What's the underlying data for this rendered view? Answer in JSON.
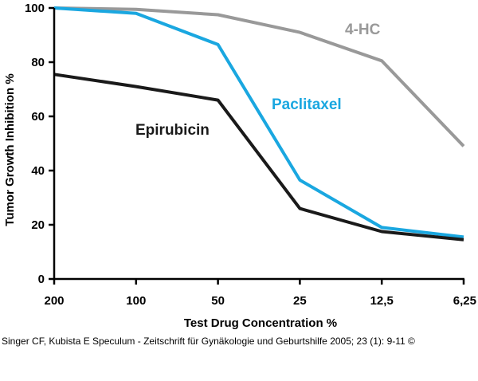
{
  "chart_data": {
    "type": "line",
    "xlabel": "Test Drug Concentration %",
    "ylabel": "Tumor Growth Inhibition %",
    "categories": [
      "200",
      "100",
      "50",
      "25",
      "12,5",
      "6,25"
    ],
    "ylim": [
      0,
      100
    ],
    "yticks": [
      "0",
      "20",
      "40",
      "60",
      "80",
      "100"
    ],
    "grid": false,
    "series": [
      {
        "name": "4-HC",
        "color": "#999999",
        "values": [
          100,
          99.5,
          97.5,
          91,
          80.5,
          49
        ]
      },
      {
        "name": "Paclitaxel",
        "color": "#1AA7E0",
        "values": [
          100,
          98,
          86.5,
          36.5,
          19,
          15.5
        ]
      },
      {
        "name": "Epirubicin",
        "color": "#1a1a1a",
        "values": [
          75.5,
          71,
          66,
          26,
          17.5,
          14.5
        ]
      }
    ]
  },
  "caption": "Singer CF, Kubista E Speculum - Zeitschrift für Gynäkologie und Geburtshilfe 2005; 23 (1): 9-11 ©"
}
